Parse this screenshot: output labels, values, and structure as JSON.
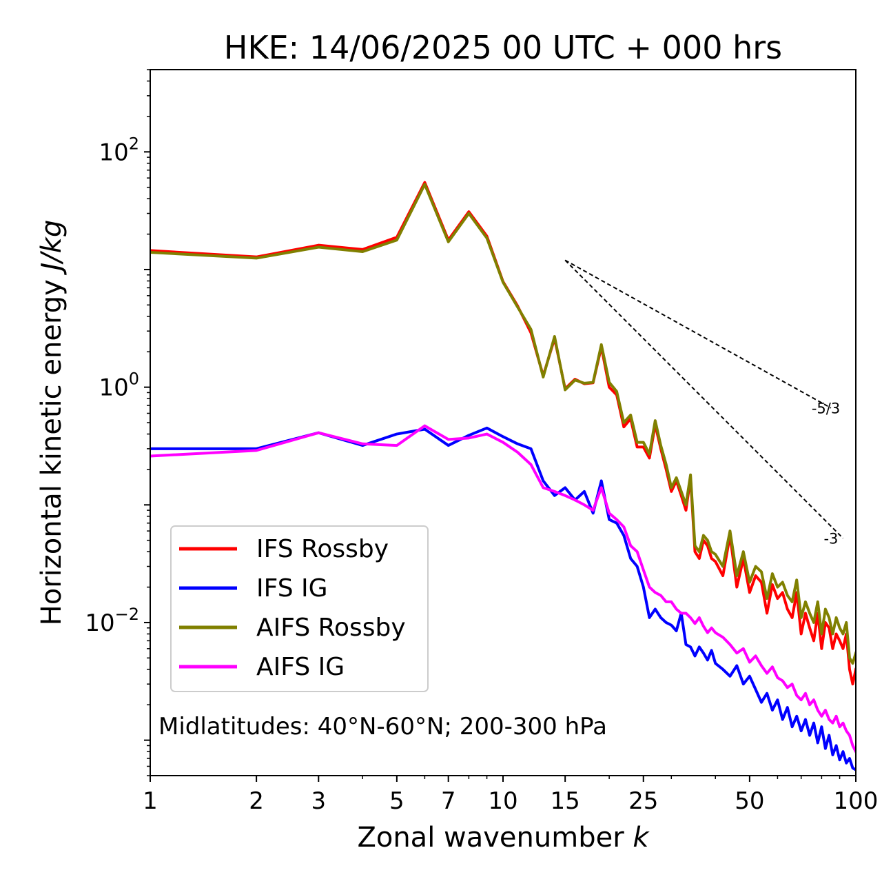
{
  "chart_data": {
    "type": "line",
    "title": "HKE: 14/06/2025 00 UTC + 000 hrs",
    "xlabel": "Zonal wavenumber",
    "xlabel_var": "k",
    "ylabel": "Horizontal kinetic energy",
    "ylabel_unit": "J/kg",
    "xscale": "log",
    "yscale": "log",
    "xlim": [
      1,
      100
    ],
    "ylim": [
      0.0005,
      500
    ],
    "x_ticks": [
      {
        "value": 1,
        "label": "1"
      },
      {
        "value": 2,
        "label": "2"
      },
      {
        "value": 3,
        "label": "3"
      },
      {
        "value": 5,
        "label": "5"
      },
      {
        "value": 7,
        "label": "7"
      },
      {
        "value": 10,
        "label": "10"
      },
      {
        "value": 15,
        "label": "15"
      },
      {
        "value": 25,
        "label": "25"
      },
      {
        "value": 50,
        "label": "50"
      },
      {
        "value": 100,
        "label": "100"
      }
    ],
    "y_ticks": [
      {
        "value": 100,
        "base": "10",
        "exp": "2"
      },
      {
        "value": 1,
        "base": "10",
        "exp": "0"
      },
      {
        "value": 0.01,
        "base": "10",
        "exp": "−2"
      }
    ],
    "grid": false,
    "legend_position": "lower-left",
    "annotation": "Midlatitudes: 40°N-60°N; 200-300 hPa",
    "reference_lines": [
      {
        "label": "-5/3",
        "slope": -1.6667,
        "k_start": 15,
        "k_end": 85,
        "e_start": 12
      },
      {
        "label": "-3",
        "slope": -3,
        "k_start": 15,
        "k_end": 92,
        "e_start": 12
      }
    ],
    "series": [
      {
        "name": "IFS Rossby",
        "color": "#ff0000",
        "points": [
          [
            1,
            14.5
          ],
          [
            2,
            12.8
          ],
          [
            3,
            16.1
          ],
          [
            4,
            14.8
          ],
          [
            5,
            18.8
          ],
          [
            6,
            55
          ],
          [
            7,
            17.8
          ],
          [
            8,
            31
          ],
          [
            9,
            19.2
          ],
          [
            10,
            7.9
          ],
          [
            11,
            4.9
          ],
          [
            12,
            2.9
          ],
          [
            13,
            1.25
          ],
          [
            14,
            2.6
          ],
          [
            15,
            0.97
          ],
          [
            16,
            1.17
          ],
          [
            17,
            1.07
          ],
          [
            18,
            1.09
          ],
          [
            19,
            2.2
          ],
          [
            20,
            1.0
          ],
          [
            21,
            0.86
          ],
          [
            22,
            0.46
          ],
          [
            23,
            0.54
          ],
          [
            24,
            0.31
          ],
          [
            25,
            0.31
          ],
          [
            26,
            0.25
          ],
          [
            27,
            0.48
          ],
          [
            28,
            0.3
          ],
          [
            29,
            0.2
          ],
          [
            30,
            0.13
          ],
          [
            31,
            0.16
          ],
          [
            32,
            0.12
          ],
          [
            33,
            0.09
          ],
          [
            34,
            0.17
          ],
          [
            35,
            0.04
          ],
          [
            36,
            0.035
          ],
          [
            37,
            0.05
          ],
          [
            38,
            0.045
          ],
          [
            39,
            0.035
          ],
          [
            40,
            0.033
          ],
          [
            42,
            0.025
          ],
          [
            44,
            0.055
          ],
          [
            46,
            0.02
          ],
          [
            48,
            0.035
          ],
          [
            50,
            0.018
          ],
          [
            52,
            0.025
          ],
          [
            54,
            0.022
          ],
          [
            56,
            0.012
          ],
          [
            58,
            0.021
          ],
          [
            60,
            0.016
          ],
          [
            62,
            0.018
          ],
          [
            64,
            0.013
          ],
          [
            66,
            0.011
          ],
          [
            68,
            0.018
          ],
          [
            70,
            0.008
          ],
          [
            72,
            0.012
          ],
          [
            74,
            0.009
          ],
          [
            76,
            0.007
          ],
          [
            78,
            0.012
          ],
          [
            80,
            0.006
          ],
          [
            82,
            0.01
          ],
          [
            84,
            0.009
          ],
          [
            86,
            0.006
          ],
          [
            88,
            0.008
          ],
          [
            90,
            0.007
          ],
          [
            92,
            0.006
          ],
          [
            94,
            0.008
          ],
          [
            96,
            0.004
          ],
          [
            98,
            0.003
          ],
          [
            100,
            0.004
          ]
        ]
      },
      {
        "name": "IFS IG",
        "color": "#0000ff",
        "points": [
          [
            1,
            0.3
          ],
          [
            2,
            0.3
          ],
          [
            3,
            0.41
          ],
          [
            4,
            0.32
          ],
          [
            5,
            0.4
          ],
          [
            6,
            0.44
          ],
          [
            7,
            0.32
          ],
          [
            8,
            0.39
          ],
          [
            9,
            0.45
          ],
          [
            10,
            0.38
          ],
          [
            11,
            0.33
          ],
          [
            12,
            0.3
          ],
          [
            13,
            0.16
          ],
          [
            14,
            0.12
          ],
          [
            15,
            0.14
          ],
          [
            16,
            0.11
          ],
          [
            17,
            0.13
          ],
          [
            18,
            0.085
          ],
          [
            19,
            0.16
          ],
          [
            20,
            0.075
          ],
          [
            21,
            0.07
          ],
          [
            22,
            0.055
          ],
          [
            23,
            0.035
          ],
          [
            24,
            0.03
          ],
          [
            25,
            0.02
          ],
          [
            26,
            0.011
          ],
          [
            27,
            0.013
          ],
          [
            28,
            0.011
          ],
          [
            29,
            0.01
          ],
          [
            30,
            0.0095
          ],
          [
            31,
            0.0085
          ],
          [
            32,
            0.012
          ],
          [
            33,
            0.0065
          ],
          [
            34,
            0.0062
          ],
          [
            35,
            0.0052
          ],
          [
            36,
            0.0062
          ],
          [
            37,
            0.0055
          ],
          [
            38,
            0.0048
          ],
          [
            39,
            0.0058
          ],
          [
            40,
            0.0045
          ],
          [
            42,
            0.004
          ],
          [
            44,
            0.0035
          ],
          [
            46,
            0.0043
          ],
          [
            48,
            0.003
          ],
          [
            50,
            0.0035
          ],
          [
            52,
            0.0027
          ],
          [
            54,
            0.0021
          ],
          [
            56,
            0.0025
          ],
          [
            58,
            0.0018
          ],
          [
            60,
            0.0022
          ],
          [
            62,
            0.0015
          ],
          [
            64,
            0.0019
          ],
          [
            66,
            0.0013
          ],
          [
            68,
            0.0016
          ],
          [
            70,
            0.0012
          ],
          [
            72,
            0.0015
          ],
          [
            74,
            0.0011
          ],
          [
            76,
            0.0014
          ],
          [
            78,
            0.00095
          ],
          [
            80,
            0.0013
          ],
          [
            82,
            0.00085
          ],
          [
            84,
            0.0011
          ],
          [
            86,
            0.00075
          ],
          [
            88,
            0.0009
          ],
          [
            90,
            0.00068
          ],
          [
            92,
            0.0008
          ],
          [
            94,
            0.00064
          ],
          [
            96,
            0.0007
          ],
          [
            98,
            0.00058
          ],
          [
            100,
            0.00056
          ]
        ]
      },
      {
        "name": "AIFS Rossby",
        "color": "#808000",
        "points": [
          [
            1,
            14
          ],
          [
            2,
            12.5
          ],
          [
            3,
            15.5
          ],
          [
            4,
            14.2
          ],
          [
            5,
            17.8
          ],
          [
            6,
            53
          ],
          [
            7,
            17.2
          ],
          [
            8,
            30
          ],
          [
            9,
            18.5
          ],
          [
            10,
            7.8
          ],
          [
            11,
            4.8
          ],
          [
            12,
            3.1
          ],
          [
            13,
            1.22
          ],
          [
            14,
            2.7
          ],
          [
            15,
            0.95
          ],
          [
            16,
            1.15
          ],
          [
            17,
            1.08
          ],
          [
            18,
            1.1
          ],
          [
            19,
            2.3
          ],
          [
            20,
            1.1
          ],
          [
            21,
            0.92
          ],
          [
            22,
            0.5
          ],
          [
            23,
            0.58
          ],
          [
            24,
            0.34
          ],
          [
            25,
            0.34
          ],
          [
            26,
            0.27
          ],
          [
            27,
            0.52
          ],
          [
            28,
            0.32
          ],
          [
            29,
            0.22
          ],
          [
            30,
            0.14
          ],
          [
            31,
            0.17
          ],
          [
            32,
            0.13
          ],
          [
            33,
            0.1
          ],
          [
            34,
            0.18
          ],
          [
            35,
            0.045
          ],
          [
            36,
            0.04
          ],
          [
            37,
            0.055
          ],
          [
            38,
            0.05
          ],
          [
            39,
            0.04
          ],
          [
            40,
            0.038
          ],
          [
            42,
            0.03
          ],
          [
            44,
            0.06
          ],
          [
            46,
            0.025
          ],
          [
            48,
            0.04
          ],
          [
            50,
            0.022
          ],
          [
            52,
            0.03
          ],
          [
            54,
            0.027
          ],
          [
            56,
            0.016
          ],
          [
            58,
            0.026
          ],
          [
            60,
            0.02
          ],
          [
            62,
            0.022
          ],
          [
            64,
            0.017
          ],
          [
            66,
            0.015
          ],
          [
            68,
            0.023
          ],
          [
            70,
            0.011
          ],
          [
            72,
            0.015
          ],
          [
            74,
            0.012
          ],
          [
            76,
            0.01
          ],
          [
            78,
            0.015
          ],
          [
            80,
            0.008
          ],
          [
            82,
            0.013
          ],
          [
            84,
            0.011
          ],
          [
            86,
            0.008
          ],
          [
            88,
            0.011
          ],
          [
            90,
            0.009
          ],
          [
            92,
            0.008
          ],
          [
            94,
            0.01
          ],
          [
            96,
            0.005
          ],
          [
            98,
            0.0045
          ],
          [
            100,
            0.0055
          ]
        ]
      },
      {
        "name": "AIFS IG",
        "color": "#ff00ff",
        "points": [
          [
            1,
            0.26
          ],
          [
            2,
            0.29
          ],
          [
            3,
            0.41
          ],
          [
            4,
            0.33
          ],
          [
            5,
            0.32
          ],
          [
            6,
            0.47
          ],
          [
            7,
            0.36
          ],
          [
            8,
            0.37
          ],
          [
            9,
            0.4
          ],
          [
            10,
            0.34
          ],
          [
            11,
            0.28
          ],
          [
            12,
            0.22
          ],
          [
            13,
            0.14
          ],
          [
            14,
            0.13
          ],
          [
            15,
            0.12
          ],
          [
            16,
            0.11
          ],
          [
            17,
            0.1
          ],
          [
            18,
            0.09
          ],
          [
            19,
            0.14
          ],
          [
            20,
            0.085
          ],
          [
            21,
            0.075
          ],
          [
            22,
            0.065
          ],
          [
            23,
            0.045
          ],
          [
            24,
            0.04
          ],
          [
            25,
            0.028
          ],
          [
            26,
            0.02
          ],
          [
            27,
            0.018
          ],
          [
            28,
            0.017
          ],
          [
            29,
            0.015
          ],
          [
            30,
            0.015
          ],
          [
            31,
            0.013
          ],
          [
            32,
            0.012
          ],
          [
            33,
            0.012
          ],
          [
            34,
            0.011
          ],
          [
            35,
            0.0098
          ],
          [
            36,
            0.011
          ],
          [
            37,
            0.0093
          ],
          [
            38,
            0.0082
          ],
          [
            39,
            0.009
          ],
          [
            40,
            0.0082
          ],
          [
            42,
            0.0075
          ],
          [
            44,
            0.0065
          ],
          [
            46,
            0.0055
          ],
          [
            48,
            0.006
          ],
          [
            50,
            0.0046
          ],
          [
            52,
            0.0052
          ],
          [
            54,
            0.0043
          ],
          [
            56,
            0.0037
          ],
          [
            58,
            0.0042
          ],
          [
            60,
            0.0034
          ],
          [
            62,
            0.0032
          ],
          [
            64,
            0.0028
          ],
          [
            66,
            0.003
          ],
          [
            68,
            0.0024
          ],
          [
            70,
            0.0022
          ],
          [
            72,
            0.0025
          ],
          [
            74,
            0.002
          ],
          [
            76,
            0.0022
          ],
          [
            78,
            0.0018
          ],
          [
            80,
            0.0016
          ],
          [
            82,
            0.0018
          ],
          [
            84,
            0.0015
          ],
          [
            86,
            0.0014
          ],
          [
            88,
            0.0016
          ],
          [
            90,
            0.0013
          ],
          [
            92,
            0.0014
          ],
          [
            94,
            0.0012
          ],
          [
            96,
            0.0011
          ],
          [
            98,
            0.0009
          ],
          [
            100,
            0.0008
          ]
        ]
      }
    ]
  }
}
